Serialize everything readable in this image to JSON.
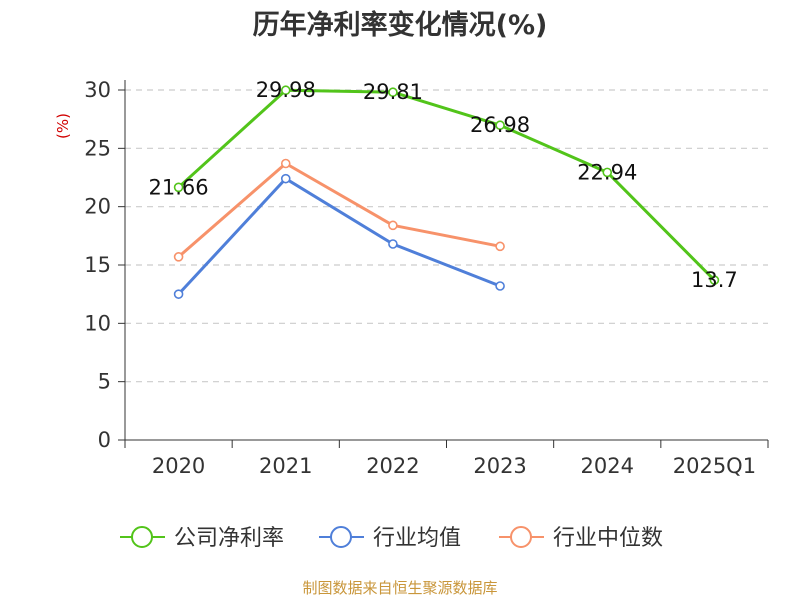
{
  "colors": {
    "company": "#52c41a",
    "industry_avg": "#4f7fd9",
    "industry_median": "#f7926a",
    "source": "#c9963a",
    "ylabel": "#d10000"
  },
  "source_text": "制图数据来自恒生聚源数据库",
  "chart_data": {
    "type": "line",
    "title": "历年净利率变化情况(%)",
    "xlabel": "",
    "ylabel": "(%)",
    "categories": [
      "2020",
      "2021",
      "2022",
      "2023",
      "2024",
      "2025Q1"
    ],
    "ylim": [
      0,
      30
    ],
    "yticks": [
      0,
      5,
      10,
      15,
      20,
      25,
      30
    ],
    "grid": true,
    "legend_position": "bottom",
    "series": [
      {
        "name": "公司净利率",
        "color": "#52c41a",
        "values": [
          21.66,
          29.98,
          29.81,
          26.98,
          22.94,
          13.7
        ],
        "data_labels": [
          "21.66",
          "29.98",
          "29.81",
          "26.98",
          "22.94",
          "13.7"
        ]
      },
      {
        "name": "行业均值",
        "color": "#4f7fd9",
        "values": [
          12.5,
          22.4,
          16.8,
          13.2,
          null,
          null
        ]
      },
      {
        "name": "行业中位数",
        "color": "#f7926a",
        "values": [
          15.7,
          23.7,
          18.4,
          16.6,
          null,
          null
        ]
      }
    ]
  }
}
